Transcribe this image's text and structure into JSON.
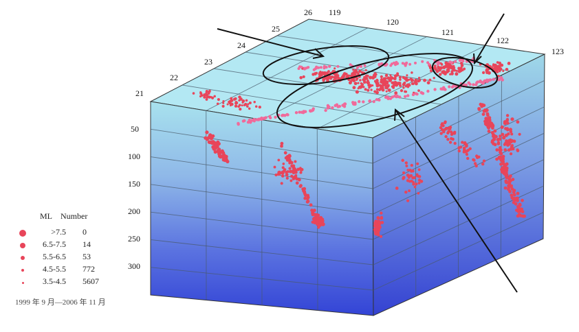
{
  "chart_data": {
    "type": "scatter",
    "x_ticks": [
      "119",
      "120",
      "121",
      "122",
      "123"
    ],
    "y_ticks": [
      "21",
      "22",
      "23",
      "24",
      "25",
      "26"
    ],
    "z_ticks": [
      "50",
      "100",
      "150",
      "200",
      "250",
      "300"
    ],
    "legend": {
      "col1": "ML",
      "col2": "Number",
      "rows": [
        {
          "range": ">7.5",
          "number": "0"
        },
        {
          "range": "6.5-7.5",
          "number": "14"
        },
        {
          "range": "5.5-6.5",
          "number": "53"
        },
        {
          "range": "4.5-5.5",
          "number": "772"
        },
        {
          "range": "3.5-4.5",
          "number": "5607"
        }
      ]
    },
    "period": "1999 年 9 月—2006 年 11 月",
    "colors": {
      "point": "#e8455a",
      "point_light": "#f06a9a",
      "top": "#aee6f2",
      "side_top": "#a6dbe8",
      "side_bottom": "#3a4ad8"
    }
  }
}
